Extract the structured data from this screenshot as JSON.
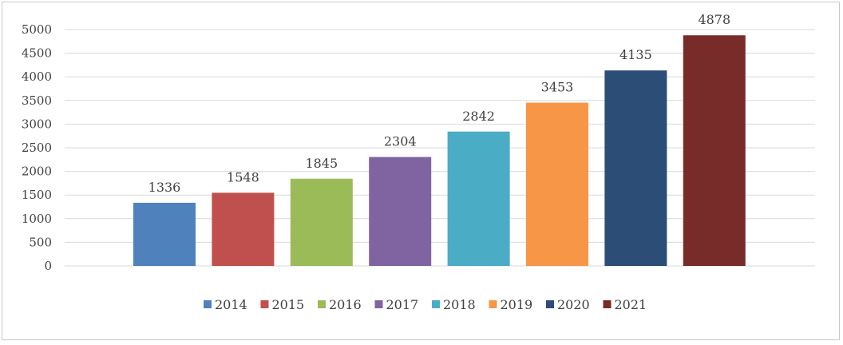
{
  "chart_data": {
    "type": "bar",
    "categories": [
      "2014",
      "2015",
      "2016",
      "2017",
      "2018",
      "2019",
      "2020",
      "2021"
    ],
    "values": [
      1336,
      1548,
      1845,
      2304,
      2842,
      3453,
      4135,
      4878
    ],
    "colors": [
      "#4f81bd",
      "#c0504d",
      "#9bbb59",
      "#8064a2",
      "#4bacc6",
      "#f79646",
      "#2c4d75",
      "#772c2a"
    ],
    "title": "",
    "xlabel": "",
    "ylabel": "",
    "ylim": [
      0,
      5000
    ],
    "ytick_step": 500,
    "yticks": [
      "0",
      "500",
      "1000",
      "1500",
      "2000",
      "2500",
      "3000",
      "3500",
      "4000",
      "4500",
      "5000"
    ],
    "grid": true,
    "legend_position": "bottom",
    "data_labels": true
  }
}
